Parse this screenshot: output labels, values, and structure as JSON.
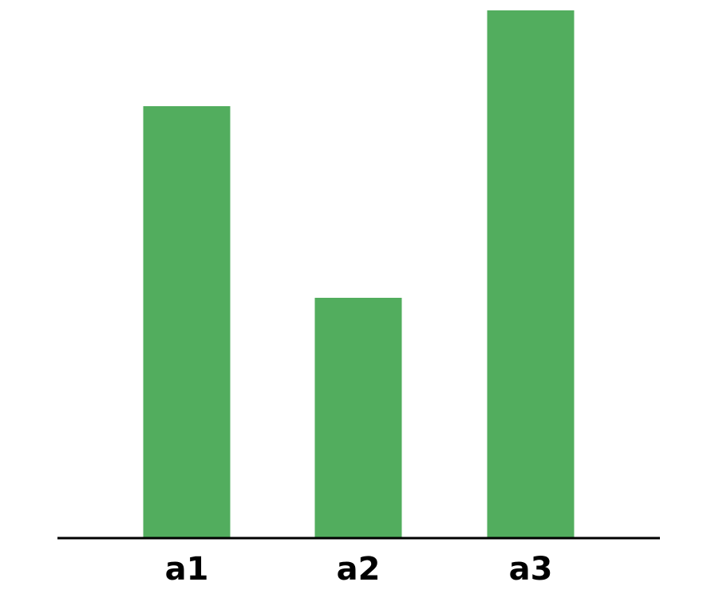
{
  "chart_data": {
    "type": "bar",
    "categories": [
      "a1",
      "a2",
      "a3"
    ],
    "values": [
      90,
      50,
      110
    ],
    "title": "",
    "xlabel": "",
    "ylabel": "",
    "ylim": [
      0,
      110
    ],
    "grid": false,
    "legend": "none",
    "bar_color": "#52AD5E",
    "axis_color": "#000000"
  }
}
